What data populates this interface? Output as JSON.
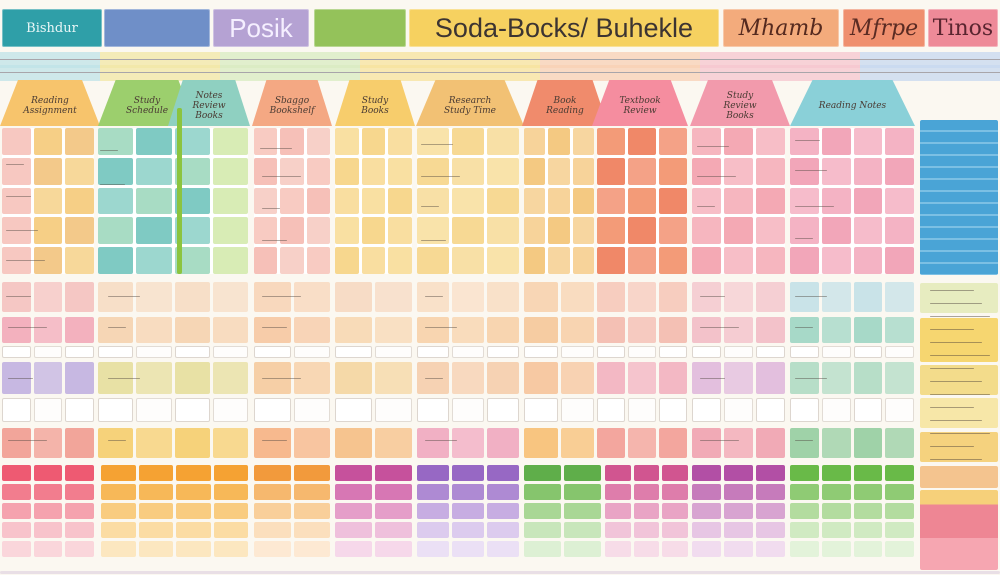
{
  "header": {
    "tabs": [
      {
        "label": "Bishdur",
        "bg": "#2f9fa8",
        "fg": "#e9f7f7"
      },
      {
        "label": "",
        "bg": "#6f8fc8",
        "fg": "#ffffff"
      },
      {
        "label": "Posik",
        "bg": "#b5a2d3",
        "fg": "#f5efff"
      },
      {
        "label": "",
        "bg": "#94c25a",
        "fg": "#33501a"
      },
      {
        "label": "Soda-Bocks/ Buhekle",
        "bg": "#f6d160",
        "fg": "#3c3432"
      },
      {
        "label": "Mhamb",
        "bg": "#f3ab7c",
        "fg": "#552a1f"
      },
      {
        "label": "Mfrpe",
        "bg": "#ef8f6e",
        "fg": "#5a2b23"
      },
      {
        "label": "Tinos",
        "bg": "#ee8a98",
        "fg": "#5a2530"
      }
    ]
  },
  "columns": [
    {
      "heading": "Reading Assignment",
      "color": "#f7c46c"
    },
    {
      "heading": "Study Schedule",
      "color": "#9ccf6d"
    },
    {
      "heading": "Notes Review Books",
      "color": "#8fd0c1"
    },
    {
      "heading": "Sbaggo Bookshelf",
      "color": "#f4a883"
    },
    {
      "heading": "Study Books",
      "color": "#f7cd6c"
    },
    {
      "heading": "Research Study Time",
      "color": "#f2c174"
    },
    {
      "heading": "Book Reading",
      "color": "#f08b6c"
    },
    {
      "heading": "Textbook Review",
      "color": "#f58d9f"
    },
    {
      "heading": "Study Review Books",
      "color": "#f29aac"
    },
    {
      "heading": "Reading Notes",
      "color": "#8ad0d8"
    }
  ],
  "colors": {
    "background": "#fbf8f1",
    "grid_line": "#ffffff",
    "sidebar_blue": "#4aa4d6",
    "sidebar_yellow": "#f6d670",
    "sidebar_pink": "#ee8694"
  }
}
